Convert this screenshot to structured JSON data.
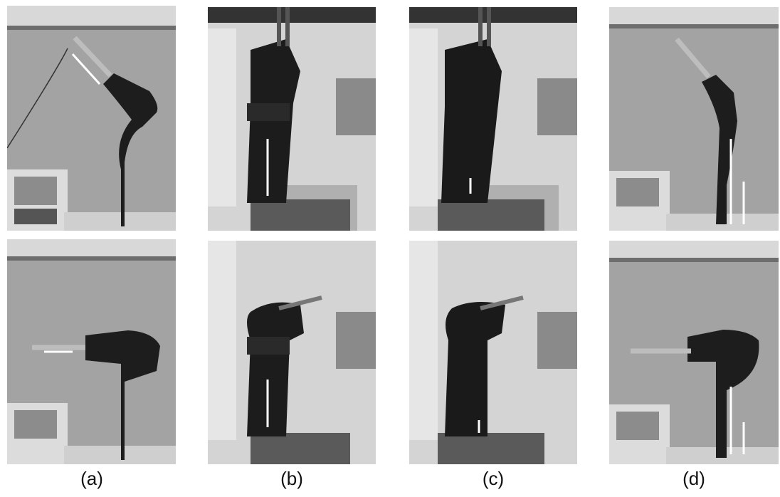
{
  "figure": {
    "columns": [
      {
        "id": "a",
        "label": "(a)"
      },
      {
        "id": "b",
        "label": "(b)"
      },
      {
        "id": "c",
        "label": "(c)"
      },
      {
        "id": "d",
        "label": "(d)"
      }
    ]
  },
  "style": {
    "arrow_color": "#ffffff",
    "brace_color": "#1a1a1a",
    "background": "#ffffff"
  }
}
